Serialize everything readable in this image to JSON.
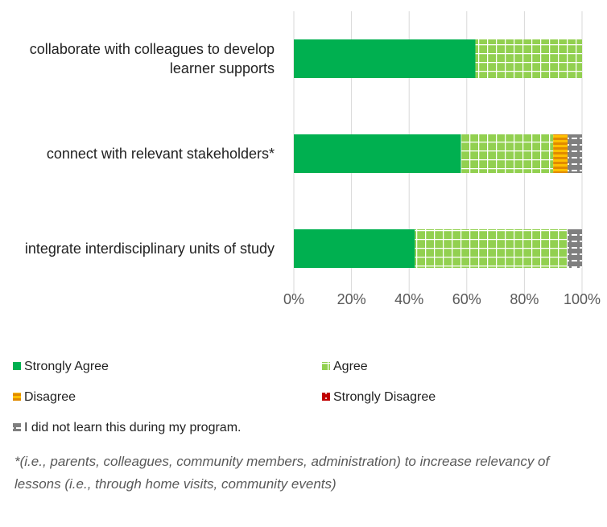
{
  "chart_data": {
    "type": "stacked-bar-horizontal",
    "categories": [
      "collaborate with colleagues to develop learner supports",
      "connect with relevant stakeholders*",
      "integrate interdisciplinary units of study"
    ],
    "series": [
      {
        "name": "Strongly Agree",
        "color": "#00b050",
        "values": [
          63,
          58,
          42
        ]
      },
      {
        "name": "Agree",
        "color": "#92d050",
        "values": [
          37,
          32,
          53
        ]
      },
      {
        "name": "Disagree",
        "color": "#ffc000",
        "values": [
          0,
          5,
          0
        ]
      },
      {
        "name": "Strongly Disagree",
        "color": "#c00000",
        "values": [
          0,
          0,
          0
        ]
      },
      {
        "name": "I did not learn this during my program.",
        "color": "#7f7f7f",
        "values": [
          0,
          5,
          5
        ]
      }
    ],
    "xlim": [
      0,
      100
    ],
    "xticks": [
      {
        "value": 0,
        "label": "0%"
      },
      {
        "value": 20,
        "label": "20%"
      },
      {
        "value": 40,
        "label": "40%"
      },
      {
        "value": 60,
        "label": "60%"
      },
      {
        "value": 80,
        "label": "80%"
      },
      {
        "value": 100,
        "label": "100%"
      }
    ],
    "grid": true,
    "footnote": "*(i.e., parents, colleagues, community members, administration) to increase relevancy of lessons (i.e., through home visits, community events)"
  }
}
